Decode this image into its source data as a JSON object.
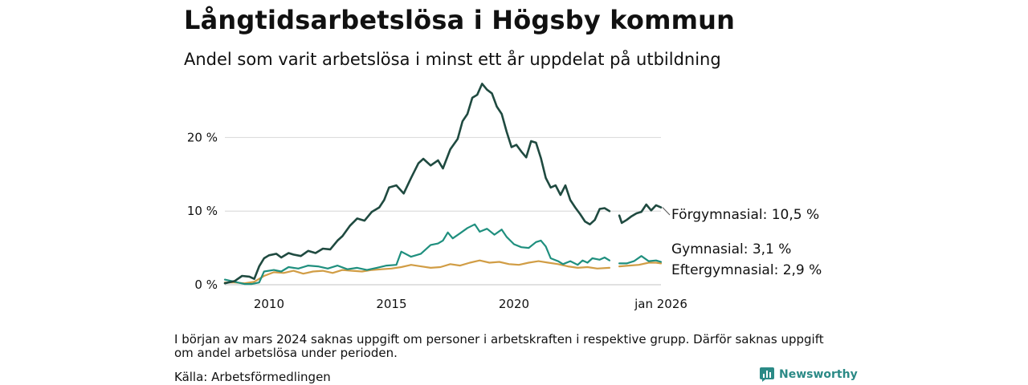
{
  "title": "Långtidsarbetslösa i Högsby kommun",
  "subtitle": "Andel som varit arbetslösa i minst ett år uppdelat på utbildning",
  "note": "I början av mars 2024 saknas uppgift om personer i arbetskraften i respektive grupp. Därför saknas uppgift om andel arbetslösa under perioden.",
  "source": "Källa: Arbetsförmedlingen",
  "brand": "Newsworthy",
  "chart_data": {
    "type": "line",
    "title": "Långtidsarbetslösa i Högsby kommun",
    "xlabel": "",
    "ylabel": "",
    "xlim": [
      2008.2,
      2026.0
    ],
    "ylim": [
      0,
      28
    ],
    "grid": true,
    "legend": "direct labels at line ends",
    "x_ticks": [
      {
        "value": 2010,
        "label": "2010"
      },
      {
        "value": 2015,
        "label": "2015"
      },
      {
        "value": 2020,
        "label": "2020"
      },
      {
        "value": 2026.0,
        "label": "jan 2026"
      }
    ],
    "y_ticks": [
      {
        "value": 0,
        "label": "0 %"
      },
      {
        "value": 10,
        "label": "10 %"
      },
      {
        "value": 20,
        "label": "20 %"
      }
    ],
    "gap": [
      2024.1,
      2024.25
    ],
    "series": [
      {
        "name": "Förgymnasial",
        "label": "Förgymnasial: 10,5 %",
        "color": "#1f4a40",
        "points": [
          [
            2008.2,
            0.2
          ],
          [
            2008.6,
            0.5
          ],
          [
            2008.9,
            1.2
          ],
          [
            2009.2,
            1.1
          ],
          [
            2009.4,
            0.8
          ],
          [
            2009.6,
            2.5
          ],
          [
            2009.8,
            3.6
          ],
          [
            2010.0,
            4.0
          ],
          [
            2010.3,
            4.2
          ],
          [
            2010.5,
            3.7
          ],
          [
            2010.8,
            4.3
          ],
          [
            2011.0,
            4.1
          ],
          [
            2011.3,
            3.9
          ],
          [
            2011.6,
            4.6
          ],
          [
            2011.9,
            4.3
          ],
          [
            2012.2,
            4.9
          ],
          [
            2012.5,
            4.8
          ],
          [
            2012.8,
            6.0
          ],
          [
            2013.0,
            6.6
          ],
          [
            2013.3,
            8.0
          ],
          [
            2013.6,
            9.0
          ],
          [
            2013.9,
            8.7
          ],
          [
            2014.2,
            9.9
          ],
          [
            2014.5,
            10.5
          ],
          [
            2014.7,
            11.5
          ],
          [
            2014.9,
            13.2
          ],
          [
            2015.2,
            13.5
          ],
          [
            2015.5,
            12.4
          ],
          [
            2015.8,
            14.5
          ],
          [
            2016.1,
            16.5
          ],
          [
            2016.3,
            17.1
          ],
          [
            2016.6,
            16.2
          ],
          [
            2016.9,
            16.9
          ],
          [
            2017.1,
            15.8
          ],
          [
            2017.4,
            18.4
          ],
          [
            2017.7,
            19.8
          ],
          [
            2017.9,
            22.2
          ],
          [
            2018.1,
            23.2
          ],
          [
            2018.3,
            25.4
          ],
          [
            2018.5,
            25.8
          ],
          [
            2018.7,
            27.3
          ],
          [
            2018.9,
            26.5
          ],
          [
            2019.1,
            26.0
          ],
          [
            2019.3,
            24.2
          ],
          [
            2019.5,
            23.2
          ],
          [
            2019.7,
            20.8
          ],
          [
            2019.9,
            18.7
          ],
          [
            2020.1,
            19.0
          ],
          [
            2020.3,
            18.1
          ],
          [
            2020.5,
            17.3
          ],
          [
            2020.7,
            19.5
          ],
          [
            2020.9,
            19.3
          ],
          [
            2021.1,
            17.2
          ],
          [
            2021.3,
            14.5
          ],
          [
            2021.5,
            13.2
          ],
          [
            2021.7,
            13.5
          ],
          [
            2021.9,
            12.2
          ],
          [
            2022.1,
            13.5
          ],
          [
            2022.3,
            11.5
          ],
          [
            2022.5,
            10.5
          ],
          [
            2022.7,
            9.6
          ],
          [
            2022.9,
            8.6
          ],
          [
            2023.1,
            8.2
          ],
          [
            2023.3,
            8.8
          ],
          [
            2023.5,
            10.3
          ],
          [
            2023.7,
            10.4
          ],
          [
            2023.9,
            10.0
          ],
          null,
          [
            2024.3,
            9.4
          ],
          [
            2024.4,
            8.4
          ],
          [
            2024.6,
            8.8
          ],
          [
            2024.8,
            9.3
          ],
          [
            2025.0,
            9.7
          ],
          [
            2025.2,
            9.9
          ],
          [
            2025.4,
            10.9
          ],
          [
            2025.6,
            10.1
          ],
          [
            2025.8,
            10.8
          ],
          [
            2026.0,
            10.5
          ]
        ]
      },
      {
        "name": "Gymnasial",
        "label": "Gymnasial:  3,1 %",
        "color": "#1f8f7e",
        "points": [
          [
            2008.2,
            0.7
          ],
          [
            2008.6,
            0.4
          ],
          [
            2009.0,
            0.1
          ],
          [
            2009.3,
            0.1
          ],
          [
            2009.6,
            0.3
          ],
          [
            2009.8,
            1.8
          ],
          [
            2010.2,
            2.0
          ],
          [
            2010.5,
            1.8
          ],
          [
            2010.8,
            2.4
          ],
          [
            2011.2,
            2.2
          ],
          [
            2011.6,
            2.6
          ],
          [
            2012.0,
            2.5
          ],
          [
            2012.4,
            2.2
          ],
          [
            2012.8,
            2.6
          ],
          [
            2013.2,
            2.1
          ],
          [
            2013.6,
            2.3
          ],
          [
            2014.0,
            2.0
          ],
          [
            2014.4,
            2.3
          ],
          [
            2014.8,
            2.6
          ],
          [
            2015.2,
            2.7
          ],
          [
            2015.4,
            4.5
          ],
          [
            2015.8,
            3.8
          ],
          [
            2016.2,
            4.2
          ],
          [
            2016.6,
            5.4
          ],
          [
            2016.9,
            5.6
          ],
          [
            2017.1,
            6.0
          ],
          [
            2017.3,
            7.1
          ],
          [
            2017.5,
            6.3
          ],
          [
            2017.8,
            7.0
          ],
          [
            2018.1,
            7.7
          ],
          [
            2018.4,
            8.2
          ],
          [
            2018.6,
            7.2
          ],
          [
            2018.9,
            7.6
          ],
          [
            2019.2,
            6.8
          ],
          [
            2019.5,
            7.5
          ],
          [
            2019.7,
            6.5
          ],
          [
            2020.0,
            5.5
          ],
          [
            2020.3,
            5.1
          ],
          [
            2020.6,
            5.0
          ],
          [
            2020.9,
            5.8
          ],
          [
            2021.1,
            6.0
          ],
          [
            2021.3,
            5.2
          ],
          [
            2021.5,
            3.6
          ],
          [
            2021.8,
            3.2
          ],
          [
            2022.0,
            2.8
          ],
          [
            2022.3,
            3.2
          ],
          [
            2022.6,
            2.7
          ],
          [
            2022.8,
            3.3
          ],
          [
            2023.0,
            3.0
          ],
          [
            2023.2,
            3.6
          ],
          [
            2023.5,
            3.4
          ],
          [
            2023.7,
            3.7
          ],
          [
            2023.9,
            3.3
          ],
          null,
          [
            2024.3,
            2.9
          ],
          [
            2024.6,
            2.9
          ],
          [
            2024.9,
            3.2
          ],
          [
            2025.2,
            3.9
          ],
          [
            2025.5,
            3.2
          ],
          [
            2025.8,
            3.3
          ],
          [
            2026.0,
            3.1
          ]
        ]
      },
      {
        "name": "Eftergymnasial",
        "label": "Eftergymnasial:  2,9 %",
        "color": "#d19d45",
        "points": [
          [
            2008.2,
            0.3
          ],
          [
            2008.6,
            0.3
          ],
          [
            2009.0,
            0.2
          ],
          [
            2009.4,
            0.4
          ],
          [
            2009.8,
            1.2
          ],
          [
            2010.2,
            1.7
          ],
          [
            2010.6,
            1.6
          ],
          [
            2011.0,
            1.9
          ],
          [
            2011.4,
            1.5
          ],
          [
            2011.8,
            1.8
          ],
          [
            2012.2,
            1.9
          ],
          [
            2012.6,
            1.6
          ],
          [
            2013.0,
            2.0
          ],
          [
            2013.4,
            1.9
          ],
          [
            2013.8,
            1.8
          ],
          [
            2014.2,
            2.0
          ],
          [
            2014.6,
            2.1
          ],
          [
            2015.0,
            2.2
          ],
          [
            2015.4,
            2.4
          ],
          [
            2015.8,
            2.7
          ],
          [
            2016.2,
            2.5
          ],
          [
            2016.6,
            2.3
          ],
          [
            2017.0,
            2.4
          ],
          [
            2017.4,
            2.8
          ],
          [
            2017.8,
            2.6
          ],
          [
            2018.2,
            3.0
          ],
          [
            2018.6,
            3.3
          ],
          [
            2019.0,
            3.0
          ],
          [
            2019.4,
            3.1
          ],
          [
            2019.8,
            2.8
          ],
          [
            2020.2,
            2.7
          ],
          [
            2020.6,
            3.0
          ],
          [
            2021.0,
            3.2
          ],
          [
            2021.4,
            3.0
          ],
          [
            2021.8,
            2.8
          ],
          [
            2022.2,
            2.5
          ],
          [
            2022.6,
            2.3
          ],
          [
            2023.0,
            2.4
          ],
          [
            2023.4,
            2.2
          ],
          [
            2023.9,
            2.3
          ],
          null,
          [
            2024.3,
            2.5
          ],
          [
            2024.7,
            2.6
          ],
          [
            2025.1,
            2.7
          ],
          [
            2025.5,
            3.0
          ],
          [
            2025.8,
            3.0
          ],
          [
            2026.0,
            2.9
          ]
        ]
      }
    ]
  }
}
